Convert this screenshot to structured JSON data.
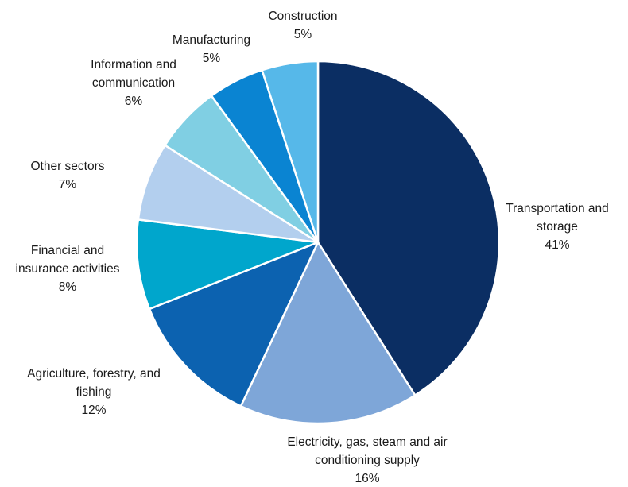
{
  "chart_data": {
    "type": "pie",
    "title": "",
    "start_angle_deg": 0,
    "direction": "clockwise",
    "slices": [
      {
        "label_lines": [
          "Transportation and",
          "storage"
        ],
        "value_label": "41%",
        "value": 41,
        "color": "#0b2e63"
      },
      {
        "label_lines": [
          "Electricity, gas, steam and air",
          "conditioning supply"
        ],
        "value_label": "16%",
        "value": 16,
        "color": "#7ea6d8"
      },
      {
        "label_lines": [
          "Agriculture, forestry, and",
          "fishing"
        ],
        "value_label": "12%",
        "value": 12,
        "color": "#0c62b0"
      },
      {
        "label_lines": [
          "Financial and",
          "insurance activities"
        ],
        "value_label": "8%",
        "value": 8,
        "color": "#00a6cc"
      },
      {
        "label_lines": [
          "Other sectors"
        ],
        "value_label": "7%",
        "value": 7,
        "color": "#b3cfee"
      },
      {
        "label_lines": [
          "Information and",
          "communication"
        ],
        "value_label": "6%",
        "value": 6,
        "color": "#80cfe3"
      },
      {
        "label_lines": [
          "Manufacturing"
        ],
        "value_label": "5%",
        "value": 5,
        "color": "#0a84d2"
      },
      {
        "label_lines": [
          "Construction"
        ],
        "value_label": "5%",
        "value": 5,
        "color": "#56b8e9"
      }
    ]
  }
}
